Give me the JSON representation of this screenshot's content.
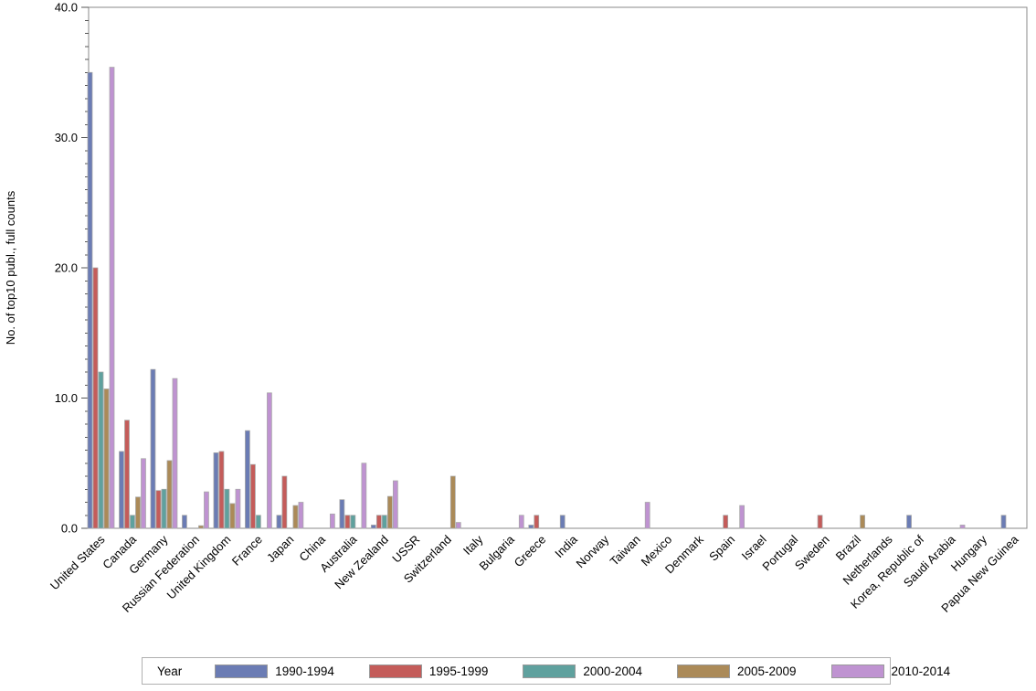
{
  "chart_data": {
    "type": "bar",
    "title": "",
    "xlabel": "",
    "ylabel": "No. of top10 publ., full counts",
    "ylim": [
      0,
      40
    ],
    "ytick_interval": 10,
    "ytick_minor_interval": 1,
    "ytick_labels": [
      "0.0",
      "10.0",
      "20.0",
      "30.0",
      "40.0"
    ],
    "grid": false,
    "legend_position": "bottom",
    "legend_title": "Year",
    "categories": [
      "United States",
      "Canada",
      "Germany",
      "Russian Federation",
      "United Kingdom",
      "France",
      "Japan",
      "China",
      "Australia",
      "New Zealand",
      "USSR",
      "Switzerland",
      "Italy",
      "Bulgaria",
      "Greece",
      "India",
      "Norway",
      "Taiwan",
      "Mexico",
      "Denmark",
      "Spain",
      "Israel",
      "Portugal",
      "Sweden",
      "Brazil",
      "Netherlands",
      "Korea, Republic of",
      "Saudi Arabia",
      "Hungary",
      "Papua New Guinea"
    ],
    "series": [
      {
        "name": "1990-1994",
        "color": "#6b7cb4",
        "values": [
          35,
          5.9,
          12.2,
          1,
          5.8,
          7.5,
          1,
          0,
          2.2,
          0.25,
          0,
          0,
          0,
          0,
          0.25,
          1,
          0,
          0,
          0,
          0,
          0,
          0,
          0,
          0,
          0,
          0,
          1,
          0,
          0,
          1
        ]
      },
      {
        "name": "1995-1999",
        "color": "#c45c5a",
        "values": [
          20,
          8.3,
          2.9,
          0,
          5.9,
          4.9,
          4,
          0,
          1,
          1,
          0,
          0,
          0,
          0,
          1,
          0,
          0,
          0,
          0,
          0,
          1,
          0,
          0,
          1,
          0,
          0,
          0,
          0,
          0,
          0
        ]
      },
      {
        "name": "2000-2004",
        "color": "#5fa19e",
        "values": [
          12,
          1,
          3,
          0,
          3,
          1,
          0,
          0,
          1,
          1,
          0,
          0,
          0,
          0,
          0,
          0,
          0,
          0,
          0,
          0,
          0,
          0,
          0,
          0,
          0,
          0,
          0,
          0,
          0,
          0
        ]
      },
      {
        "name": "2005-2009",
        "color": "#ab8a58",
        "values": [
          10.7,
          2.4,
          5.2,
          0.2,
          1.9,
          0,
          1.75,
          0,
          0,
          2.45,
          0,
          4,
          0,
          0,
          0,
          0,
          0,
          0,
          0,
          0,
          0,
          0,
          0,
          0,
          1,
          0,
          0,
          0,
          0,
          0
        ]
      },
      {
        "name": "2010-2014",
        "color": "#bf93d1",
        "values": [
          35.4,
          5.35,
          11.5,
          2.8,
          3,
          10.4,
          2,
          1.1,
          5,
          3.65,
          0,
          0.45,
          0,
          1,
          0,
          0,
          0,
          2,
          0,
          0,
          1.75,
          0,
          0,
          0,
          0,
          0,
          0,
          0.25,
          0,
          0
        ]
      }
    ]
  }
}
